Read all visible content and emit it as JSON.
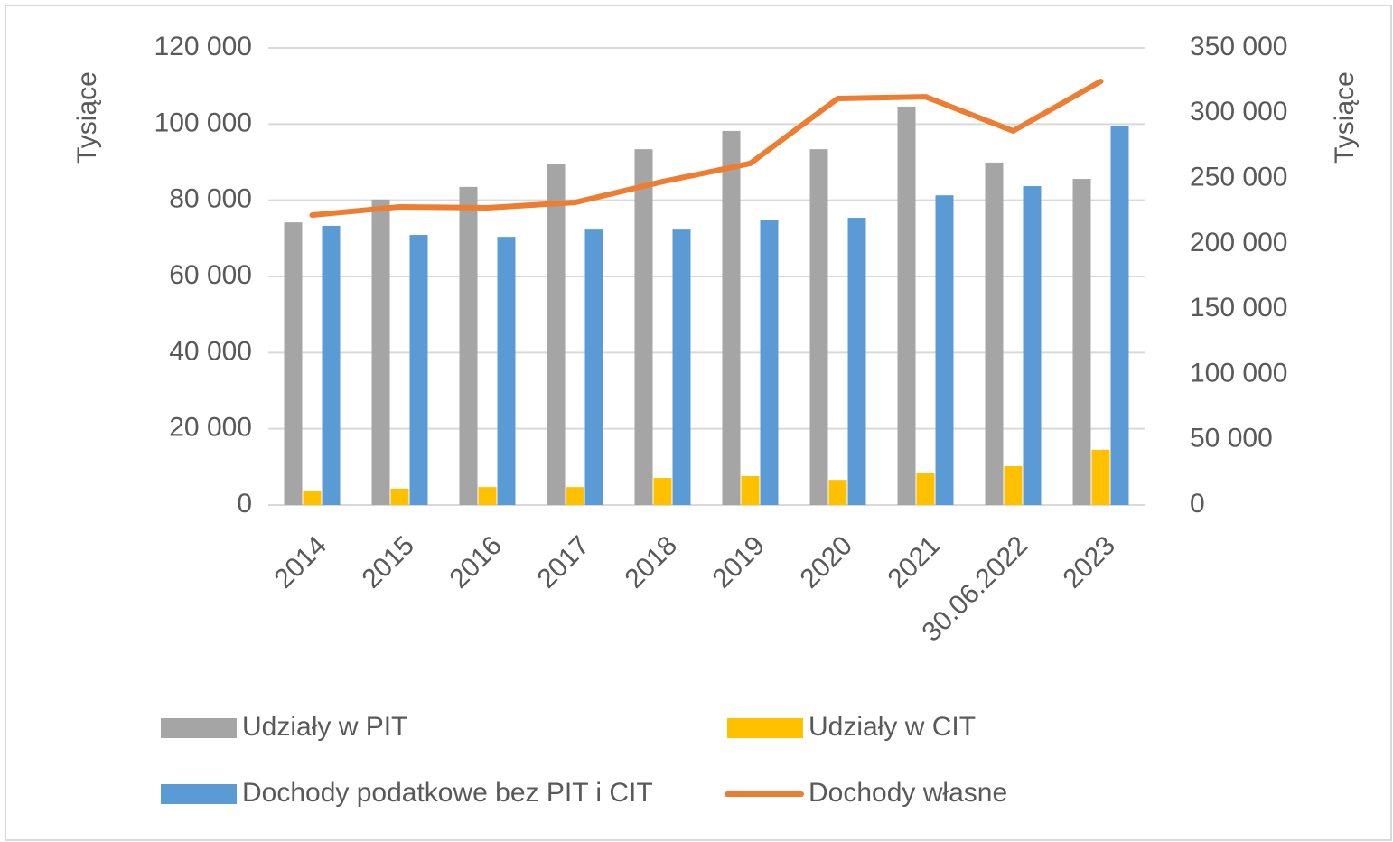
{
  "chart_data": {
    "type": "bar",
    "categories": [
      "2014",
      "2015",
      "2016",
      "2017",
      "2018",
      "2019",
      "2020",
      "2021",
      "30.06.2022",
      "2023"
    ],
    "series": [
      {
        "name": "Udziały w PIT",
        "color": "#a5a5a5",
        "values": [
          74200,
          80200,
          83500,
          89400,
          93400,
          98200,
          93400,
          104600,
          89900,
          85600
        ]
      },
      {
        "name": "Udziały w CIT",
        "color": "#ffc000",
        "values": [
          3800,
          4300,
          4700,
          4700,
          7100,
          7600,
          6600,
          8300,
          10200,
          14500
        ]
      },
      {
        "name": "Dochody podatkowe bez PIT i CIT",
        "color": "#5b9bd5",
        "values": [
          73300,
          70900,
          70400,
          72300,
          72300,
          74900,
          75400,
          81300,
          83700,
          99600
        ]
      },
      {
        "name": "Dochody własne",
        "color": "#ed7d31",
        "type": "line",
        "axis": "y2",
        "values": [
          222000,
          228300,
          227600,
          231700,
          247600,
          261500,
          311300,
          312600,
          286400,
          324400
        ]
      }
    ],
    "ylabel": "Tysiące",
    "y2label": "Tysiące",
    "ylim": [
      0,
      120000
    ],
    "yticks": [
      0,
      {
        "value": 20000,
        "label": "20 000"
      },
      {
        "value": 40000,
        "label": "40 000"
      },
      {
        "value": 60000,
        "label": "60 000"
      },
      {
        "value": 80000,
        "label": "80 000"
      },
      {
        "value": 100000,
        "label": "100 000"
      },
      {
        "value": 120000,
        "label": "120 000"
      }
    ],
    "y2lim": [
      0,
      350000
    ],
    "y2ticks": [
      0,
      {
        "value": 50000,
        "label": "50 000"
      },
      {
        "value": 100000,
        "label": "100 000"
      },
      {
        "value": 150000,
        "label": "150 000"
      },
      {
        "value": 200000,
        "label": "200 000"
      },
      {
        "value": 250000,
        "label": "250 000"
      },
      {
        "value": 300000,
        "label": "300 000"
      },
      {
        "value": 350000,
        "label": "350 000"
      }
    ],
    "grid": true,
    "legend": "bottom"
  }
}
